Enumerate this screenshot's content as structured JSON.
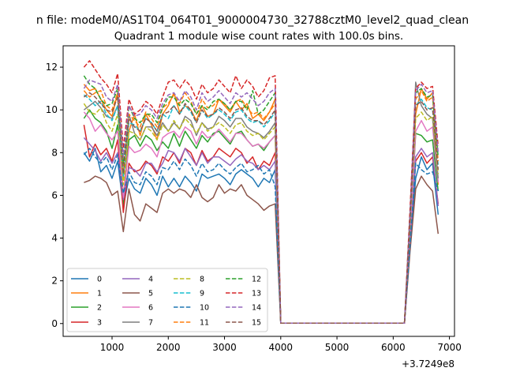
{
  "suptitle": "n file: modeM0/AS1T04_064T01_9000004730_32788cztM0_level2_quad_clean",
  "chart_data": {
    "type": "line",
    "title": "Quadrant 1 module wise count rates with 100.0s bins.",
    "xlabel": "",
    "ylabel": "",
    "x_offset_label": "+3.7249e8",
    "xlim": [
      130,
      7090
    ],
    "ylim": [
      -0.6,
      13.0
    ],
    "xticks": [
      1000,
      2000,
      3000,
      4000,
      5000,
      6000,
      7000
    ],
    "xtick_labels": [
      "1000",
      "2000",
      "3000",
      "4000",
      "5000",
      "6000",
      "7000"
    ],
    "yticks": [
      0,
      2,
      4,
      6,
      8,
      10,
      12
    ],
    "ytick_labels": [
      "0",
      "2",
      "4",
      "6",
      "8",
      "10",
      "12"
    ],
    "grid": false,
    "legend_position": "lower-left",
    "legend_columns": 4,
    "x": [
      500,
      600,
      700,
      800,
      900,
      1000,
      1100,
      1200,
      1300,
      1400,
      1500,
      1600,
      1700,
      1800,
      1900,
      2000,
      2100,
      2200,
      2300,
      2400,
      2500,
      2600,
      2700,
      2800,
      2900,
      3000,
      3100,
      3200,
      3300,
      3400,
      3500,
      3600,
      3700,
      3800,
      3900,
      4000,
      4100,
      4200,
      4300,
      4400,
      4500,
      4600,
      4700,
      4800,
      4900,
      5000,
      5100,
      5200,
      5300,
      5400,
      5500,
      5600,
      5700,
      5800,
      5900,
      6000,
      6100,
      6200,
      6300,
      6400,
      6500,
      6600,
      6700,
      6800
    ],
    "series": [
      {
        "name": "0",
        "color": "#1f77b4",
        "dash": "solid",
        "values": [
          8.0,
          7.6,
          8.2,
          7.1,
          7.4,
          6.8,
          7.6,
          5.5,
          6.8,
          6.3,
          6.1,
          6.8,
          6.5,
          6.0,
          6.9,
          6.4,
          6.8,
          6.4,
          6.9,
          6.6,
          6.2,
          7.0,
          6.8,
          6.9,
          7.0,
          6.8,
          6.5,
          7.0,
          7.2,
          7.0,
          6.8,
          6.4,
          6.8,
          6.6,
          7.2,
          0.02,
          0.02,
          0.02,
          0.02,
          0.02,
          0.02,
          0.02,
          0.02,
          0.02,
          0.02,
          0.02,
          0.02,
          0.02,
          0.02,
          0.02,
          0.02,
          0.02,
          0.02,
          0.02,
          0.02,
          0.02,
          0.02,
          0.02,
          3.6,
          6.8,
          7.8,
          7.2,
          7.5,
          5.1
        ]
      },
      {
        "name": "1",
        "color": "#ff7f0e",
        "dash": "solid",
        "values": [
          11.2,
          10.9,
          11.0,
          10.5,
          10.0,
          9.7,
          10.8,
          5.8,
          9.0,
          9.8,
          8.8,
          9.8,
          9.3,
          8.6,
          9.8,
          10.2,
          10.8,
          9.9,
          10.2,
          10.0,
          9.5,
          10.2,
          9.7,
          9.8,
          10.5,
          10.2,
          9.9,
          10.4,
          10.0,
          10.3,
          9.6,
          9.8,
          9.5,
          9.9,
          10.5,
          0.02,
          0.02,
          0.02,
          0.02,
          0.02,
          0.02,
          0.02,
          0.02,
          0.02,
          0.02,
          0.02,
          0.02,
          0.02,
          0.02,
          0.02,
          0.02,
          0.02,
          0.02,
          0.02,
          0.02,
          0.02,
          0.02,
          0.02,
          4.5,
          9.8,
          11.0,
          10.5,
          10.8,
          6.5
        ]
      },
      {
        "name": "2",
        "color": "#2ca02c",
        "dash": "solid",
        "values": [
          9.6,
          10.0,
          9.6,
          9.4,
          9.0,
          8.2,
          9.3,
          5.6,
          8.6,
          8.8,
          8.3,
          8.8,
          8.6,
          8.1,
          8.5,
          8.2,
          8.9,
          8.3,
          9.0,
          8.6,
          8.2,
          8.8,
          8.5,
          8.9,
          9.0,
          8.7,
          8.4,
          8.9,
          9.0,
          8.6,
          8.3,
          8.4,
          8.1,
          8.5,
          8.8,
          0.02,
          0.02,
          0.02,
          0.02,
          0.02,
          0.02,
          0.02,
          0.02,
          0.02,
          0.02,
          0.02,
          0.02,
          0.02,
          0.02,
          0.02,
          0.02,
          0.02,
          0.02,
          0.02,
          0.02,
          0.02,
          0.02,
          0.02,
          4.2,
          8.9,
          8.8,
          8.5,
          8.6,
          6.2
        ]
      },
      {
        "name": "3",
        "color": "#d62728",
        "dash": "solid",
        "values": [
          9.3,
          7.8,
          8.4,
          7.9,
          8.2,
          7.6,
          8.6,
          5.2,
          7.5,
          7.1,
          7.2,
          7.6,
          7.4,
          7.0,
          7.8,
          7.6,
          8.0,
          7.5,
          8.2,
          8.0,
          7.4,
          8.1,
          7.6,
          7.8,
          8.2,
          8.0,
          7.8,
          8.2,
          8.0,
          7.5,
          7.8,
          7.2,
          7.6,
          7.4,
          8.0,
          0.02,
          0.02,
          0.02,
          0.02,
          0.02,
          0.02,
          0.02,
          0.02,
          0.02,
          0.02,
          0.02,
          0.02,
          0.02,
          0.02,
          0.02,
          0.02,
          0.02,
          0.02,
          0.02,
          0.02,
          0.02,
          0.02,
          0.02,
          3.8,
          7.6,
          8.0,
          7.5,
          7.8,
          5.6
        ]
      },
      {
        "name": "4",
        "color": "#9467bd",
        "dash": "solid",
        "values": [
          8.7,
          8.4,
          8.1,
          7.6,
          8.0,
          7.5,
          8.0,
          5.8,
          7.3,
          7.2,
          6.9,
          7.5,
          7.5,
          7.1,
          7.5,
          8.1,
          8.0,
          7.6,
          8.2,
          7.8,
          7.4,
          8.0,
          7.5,
          7.8,
          7.8,
          7.6,
          7.4,
          7.7,
          7.9,
          7.6,
          7.5,
          7.2,
          7.4,
          7.2,
          7.6,
          0.02,
          0.02,
          0.02,
          0.02,
          0.02,
          0.02,
          0.02,
          0.02,
          0.02,
          0.02,
          0.02,
          0.02,
          0.02,
          0.02,
          0.02,
          0.02,
          0.02,
          0.02,
          0.02,
          0.02,
          0.02,
          0.02,
          0.02,
          3.8,
          7.8,
          8.2,
          7.8,
          8.0,
          5.5
        ]
      },
      {
        "name": "5",
        "color": "#8c564b",
        "dash": "solid",
        "values": [
          6.6,
          6.7,
          6.9,
          6.8,
          6.6,
          6.0,
          6.2,
          4.3,
          6.3,
          5.1,
          4.8,
          5.6,
          5.4,
          5.2,
          6.1,
          6.3,
          6.1,
          6.3,
          6.2,
          5.9,
          6.5,
          5.9,
          5.7,
          5.9,
          6.5,
          6.1,
          6.3,
          6.2,
          6.5,
          6.0,
          5.8,
          5.6,
          5.3,
          5.5,
          5.6,
          0.02,
          0.02,
          0.02,
          0.02,
          0.02,
          0.02,
          0.02,
          0.02,
          0.02,
          0.02,
          0.02,
          0.02,
          0.02,
          0.02,
          0.02,
          0.02,
          0.02,
          0.02,
          0.02,
          0.02,
          0.02,
          0.02,
          0.02,
          3.4,
          6.3,
          6.9,
          6.5,
          6.2,
          4.2
        ]
      },
      {
        "name": "6",
        "color": "#e377c2",
        "dash": "solid",
        "values": [
          9.9,
          9.6,
          9.0,
          9.3,
          8.9,
          8.6,
          9.0,
          5.9,
          8.3,
          8.0,
          8.1,
          8.4,
          8.2,
          7.8,
          8.7,
          8.9,
          9.0,
          8.7,
          9.2,
          9.0,
          8.4,
          9.0,
          8.7,
          8.8,
          9.1,
          8.8,
          8.5,
          8.9,
          8.9,
          8.6,
          8.3,
          8.4,
          8.2,
          8.5,
          8.8,
          0.02,
          0.02,
          0.02,
          0.02,
          0.02,
          0.02,
          0.02,
          0.02,
          0.02,
          0.02,
          0.02,
          0.02,
          0.02,
          0.02,
          0.02,
          0.02,
          0.02,
          0.02,
          0.02,
          0.02,
          0.02,
          0.02,
          0.02,
          4.3,
          9.0,
          9.5,
          9.0,
          9.2,
          6.6
        ]
      },
      {
        "name": "7",
        "color": "#7f7f7f",
        "dash": "solid",
        "values": [
          10.0,
          10.2,
          10.4,
          10.1,
          9.7,
          9.6,
          10.2,
          6.8,
          9.8,
          8.9,
          8.6,
          9.2,
          9.2,
          8.8,
          9.4,
          9.0,
          9.4,
          9.1,
          9.7,
          9.5,
          8.8,
          9.4,
          9.1,
          9.2,
          9.7,
          9.5,
          9.2,
          9.6,
          9.6,
          9.2,
          9.0,
          8.9,
          8.7,
          9.0,
          9.4,
          0.02,
          0.02,
          0.02,
          0.02,
          0.02,
          0.02,
          0.02,
          0.02,
          0.02,
          0.02,
          0.02,
          0.02,
          0.02,
          0.02,
          0.02,
          0.02,
          0.02,
          0.02,
          0.02,
          0.02,
          0.02,
          0.02,
          0.02,
          4.8,
          11.3,
          10.2,
          9.8,
          9.6,
          6.8
        ]
      },
      {
        "name": "8",
        "color": "#bcbd22",
        "dash": "dashed",
        "values": [
          10.3,
          9.9,
          9.8,
          10.1,
          9.4,
          9.0,
          9.8,
          6.5,
          9.0,
          8.9,
          8.6,
          9.2,
          9.0,
          8.6,
          9.3,
          9.0,
          9.5,
          9.1,
          9.6,
          9.3,
          8.9,
          9.4,
          9.0,
          9.2,
          9.4,
          9.2,
          8.9,
          9.3,
          9.4,
          9.0,
          8.8,
          8.9,
          8.6,
          8.9,
          9.2,
          0.02,
          0.02,
          0.02,
          0.02,
          0.02,
          0.02,
          0.02,
          0.02,
          0.02,
          0.02,
          0.02,
          0.02,
          0.02,
          0.02,
          0.02,
          0.02,
          0.02,
          0.02,
          0.02,
          0.02,
          0.02,
          0.02,
          0.02,
          4.6,
          9.6,
          9.9,
          9.5,
          9.7,
          7.0
        ]
      },
      {
        "name": "9",
        "color": "#17becf",
        "dash": "dashed",
        "values": [
          10.7,
          10.5,
          10.2,
          10.4,
          9.8,
          9.5,
          10.2,
          6.9,
          9.4,
          9.3,
          9.0,
          9.6,
          9.4,
          9.0,
          9.8,
          9.6,
          10.2,
          9.8,
          10.2,
          9.9,
          9.4,
          10.0,
          9.6,
          9.8,
          10.0,
          9.8,
          9.5,
          9.9,
          10.0,
          9.6,
          9.4,
          9.5,
          9.2,
          9.5,
          9.9,
          0.02,
          0.02,
          0.02,
          0.02,
          0.02,
          0.02,
          0.02,
          0.02,
          0.02,
          0.02,
          0.02,
          0.02,
          0.02,
          0.02,
          0.02,
          0.02,
          0.02,
          0.02,
          0.02,
          0.02,
          0.02,
          0.02,
          0.02,
          4.8,
          10.2,
          10.5,
          10.1,
          10.0,
          7.4
        ]
      },
      {
        "name": "10",
        "color": "#1f77b4",
        "dash": "dashed",
        "values": [
          7.9,
          8.2,
          7.8,
          7.5,
          7.8,
          7.2,
          7.9,
          6.1,
          7.1,
          6.6,
          6.5,
          7.1,
          6.9,
          6.5,
          7.3,
          7.2,
          7.6,
          7.2,
          7.7,
          7.4,
          6.9,
          7.5,
          7.1,
          7.2,
          7.5,
          7.2,
          7.0,
          7.3,
          7.5,
          7.1,
          7.2,
          7.4,
          7.0,
          7.2,
          6.4,
          0.02,
          0.02,
          0.02,
          0.02,
          0.02,
          0.02,
          0.02,
          0.02,
          0.02,
          0.02,
          0.02,
          0.02,
          0.02,
          0.02,
          0.02,
          0.02,
          0.02,
          0.02,
          0.02,
          0.02,
          0.02,
          0.02,
          0.02,
          3.7,
          7.5,
          7.2,
          7.0,
          7.1,
          6.2
        ]
      },
      {
        "name": "11",
        "color": "#ff7f0e",
        "dash": "dashed",
        "values": [
          10.9,
          10.6,
          10.8,
          10.9,
          10.2,
          10.0,
          10.8,
          7.2,
          9.8,
          9.5,
          9.2,
          9.9,
          9.6,
          9.2,
          10.1,
          10.3,
          10.7,
          10.3,
          10.8,
          10.4,
          9.8,
          10.5,
          10.1,
          10.2,
          10.5,
          10.3,
          10.0,
          10.4,
          10.5,
          10.1,
          9.8,
          9.9,
          9.6,
          9.9,
          10.3,
          0.02,
          0.02,
          0.02,
          0.02,
          0.02,
          0.02,
          0.02,
          0.02,
          0.02,
          0.02,
          0.02,
          0.02,
          0.02,
          0.02,
          0.02,
          0.02,
          0.02,
          0.02,
          0.02,
          0.02,
          0.02,
          0.02,
          0.02,
          5.0,
          10.5,
          10.9,
          10.4,
          10.6,
          7.6
        ]
      },
      {
        "name": "12",
        "color": "#2ca02c",
        "dash": "dashed",
        "values": [
          11.6,
          11.2,
          11.0,
          10.5,
          10.2,
          10.3,
          11.0,
          7.5,
          10.2,
          9.6,
          9.4,
          9.8,
          9.8,
          9.4,
          10.1,
          10.6,
          10.6,
          10.2,
          10.5,
          10.3,
          9.8,
          10.2,
          10.0,
          10.4,
          10.5,
          10.3,
          10.0,
          10.4,
          10.4,
          10.0,
          10.9,
          9.8,
          10.0,
          10.4,
          10.8,
          0.02,
          0.02,
          0.02,
          0.02,
          0.02,
          0.02,
          0.02,
          0.02,
          0.02,
          0.02,
          0.02,
          0.02,
          0.02,
          0.02,
          0.02,
          0.02,
          0.02,
          0.02,
          0.02,
          0.02,
          0.02,
          0.02,
          0.02,
          5.2,
          10.8,
          11.0,
          10.6,
          10.7,
          7.8
        ]
      },
      {
        "name": "13",
        "color": "#d62728",
        "dash": "dashed",
        "values": [
          12.0,
          12.3,
          11.9,
          11.5,
          11.2,
          10.8,
          11.7,
          8.2,
          10.5,
          9.8,
          10.0,
          10.4,
          10.2,
          9.8,
          10.6,
          11.3,
          11.4,
          11.0,
          11.4,
          11.1,
          10.5,
          11.2,
          10.8,
          11.0,
          11.4,
          11.1,
          10.8,
          11.6,
          11.0,
          11.4,
          11.1,
          10.6,
          10.9,
          11.5,
          11.6,
          0.02,
          0.02,
          0.02,
          0.02,
          0.02,
          0.02,
          0.02,
          0.02,
          0.02,
          0.02,
          0.02,
          0.02,
          0.02,
          0.02,
          0.02,
          0.02,
          0.02,
          0.02,
          0.02,
          0.02,
          0.02,
          0.02,
          0.02,
          5.4,
          11.0,
          11.3,
          11.0,
          11.1,
          8.3
        ]
      },
      {
        "name": "14",
        "color": "#9467bd",
        "dash": "dashed",
        "values": [
          11.0,
          11.4,
          11.3,
          11.2,
          10.6,
          10.4,
          11.2,
          7.8,
          10.2,
          9.7,
          9.8,
          10.2,
          10.0,
          9.6,
          10.3,
          10.7,
          10.8,
          10.4,
          10.9,
          10.6,
          10.0,
          10.8,
          10.4,
          10.6,
          10.9,
          10.6,
          10.3,
          10.8,
          10.6,
          10.8,
          10.5,
          10.2,
          10.4,
          10.8,
          11.0,
          0.02,
          0.02,
          0.02,
          0.02,
          0.02,
          0.02,
          0.02,
          0.02,
          0.02,
          0.02,
          0.02,
          0.02,
          0.02,
          0.02,
          0.02,
          0.02,
          0.02,
          0.02,
          0.02,
          0.02,
          0.02,
          0.02,
          0.02,
          5.1,
          10.9,
          11.2,
          10.8,
          10.9,
          8.0
        ]
      },
      {
        "name": "15",
        "color": "#8c564b",
        "dash": "dashed",
        "values": [
          10.6,
          10.8,
          10.6,
          10.3,
          10.0,
          9.9,
          10.6,
          7.0,
          9.6,
          9.2,
          9.0,
          9.6,
          9.4,
          9.0,
          9.8,
          9.9,
          10.2,
          9.8,
          10.3,
          10.0,
          9.4,
          10.0,
          9.7,
          9.8,
          10.1,
          9.9,
          9.6,
          10.0,
          10.1,
          9.7,
          9.5,
          9.5,
          9.3,
          9.6,
          10.0,
          0.02,
          0.02,
          0.02,
          0.02,
          0.02,
          0.02,
          0.02,
          0.02,
          0.02,
          0.02,
          0.02,
          0.02,
          0.02,
          0.02,
          0.02,
          0.02,
          0.02,
          0.02,
          0.02,
          0.02,
          0.02,
          0.02,
          0.02,
          4.9,
          10.2,
          10.4,
          10.0,
          10.1,
          7.2
        ]
      }
    ]
  }
}
